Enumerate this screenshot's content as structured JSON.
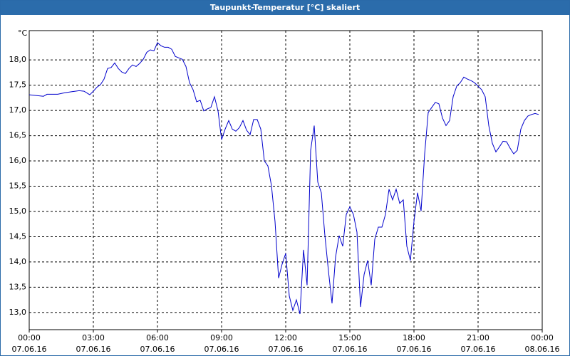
{
  "chart_data": {
    "type": "line",
    "title": "Taupunkt-Temperatur [°C] skaliert",
    "y_unit": "°C",
    "x": [
      0,
      40,
      50,
      80,
      100,
      120,
      140,
      154,
      170,
      180,
      190,
      200,
      210,
      220,
      230,
      240,
      250,
      260,
      270,
      280,
      290,
      300,
      310,
      320,
      330,
      340,
      350,
      360,
      370,
      380,
      390,
      400,
      410,
      420,
      430,
      440,
      450,
      460,
      470,
      480,
      490,
      500,
      510,
      520,
      530,
      540,
      550,
      560,
      570,
      580,
      590,
      600,
      610,
      620,
      630,
      640,
      650,
      660,
      670,
      680,
      690,
      700,
      710,
      720,
      730,
      740,
      750,
      760,
      770,
      780,
      790,
      800,
      810,
      820,
      830,
      840,
      850,
      860,
      870,
      880,
      890,
      900,
      910,
      920,
      930,
      940,
      950,
      960,
      970,
      980,
      990,
      1000,
      1010,
      1020,
      1030,
      1040,
      1050,
      1060,
      1070,
      1080,
      1090,
      1100,
      1110,
      1120,
      1130,
      1140,
      1150,
      1160,
      1170,
      1180,
      1190,
      1200,
      1210,
      1220,
      1230,
      1240,
      1250,
      1260,
      1270,
      1280,
      1290,
      1300,
      1310,
      1320,
      1330,
      1340,
      1350,
      1360,
      1370,
      1380,
      1390,
      1400,
      1410,
      1420,
      1430
    ],
    "series": [
      {
        "name": "Taupunkt",
        "color": "#0000cc",
        "values": [
          17.31,
          17.28,
          17.32,
          17.32,
          17.35,
          17.37,
          17.39,
          17.38,
          17.31,
          17.38,
          17.46,
          17.51,
          17.62,
          17.83,
          17.85,
          17.94,
          17.83,
          17.76,
          17.73,
          17.83,
          17.9,
          17.87,
          17.93,
          18.01,
          18.15,
          18.2,
          18.18,
          18.34,
          18.28,
          18.25,
          18.25,
          18.21,
          18.07,
          18.04,
          18.01,
          17.87,
          17.55,
          17.41,
          17.17,
          17.2,
          16.99,
          17.03,
          17.06,
          17.27,
          16.99,
          16.42,
          16.63,
          16.8,
          16.63,
          16.59,
          16.66,
          16.8,
          16.61,
          16.52,
          16.82,
          16.82,
          16.63,
          16.0,
          15.9,
          15.51,
          14.8,
          13.68,
          13.96,
          14.17,
          13.33,
          13.04,
          13.25,
          12.97,
          14.24,
          13.54,
          16.21,
          16.7,
          15.58,
          15.37,
          14.52,
          13.82,
          13.18,
          14.1,
          14.52,
          14.31,
          14.94,
          15.09,
          14.94,
          14.59,
          13.11,
          13.75,
          14.03,
          13.54,
          14.45,
          14.69,
          14.69,
          14.94,
          15.44,
          15.23,
          15.44,
          15.16,
          15.23,
          14.31,
          14.03,
          14.8,
          15.37,
          15.01,
          16.14,
          16.96,
          17.06,
          17.16,
          17.13,
          16.85,
          16.7,
          16.8,
          17.27,
          17.48,
          17.55,
          17.66,
          17.62,
          17.59,
          17.55,
          17.48,
          17.41,
          17.27,
          16.7,
          16.35,
          16.18,
          16.28,
          16.39,
          16.38,
          16.25,
          16.14,
          16.21,
          16.63,
          16.8,
          16.89,
          16.92,
          16.94,
          16.92
        ]
      }
    ],
    "xlim": [
      0,
      1440
    ],
    "xticks": [
      {
        "value": 0,
        "label": "00:00"
      },
      {
        "value": 180,
        "label": "03:00"
      },
      {
        "value": 360,
        "label": "06:00"
      },
      {
        "value": 540,
        "label": "09:00"
      },
      {
        "value": 720,
        "label": "12:00"
      },
      {
        "value": 900,
        "label": "15:00"
      },
      {
        "value": 1080,
        "label": "18:00"
      },
      {
        "value": 1260,
        "label": "21:00"
      },
      {
        "value": 1440,
        "label": "00:00"
      }
    ],
    "xtick_dates": [
      "07.06.16",
      "07.06.16",
      "07.06.16",
      "07.06.16",
      "07.06.16",
      "07.06.16",
      "07.06.16",
      "07.06.16",
      "08.06.16"
    ],
    "ylim": [
      12.66,
      18.58
    ],
    "yticks": [
      {
        "value": 13,
        "label": "13,0"
      },
      {
        "value": 13.5,
        "label": "13,5"
      },
      {
        "value": 14,
        "label": "14,0"
      },
      {
        "value": 14.5,
        "label": "14,5"
      },
      {
        "value": 15,
        "label": "15,0"
      },
      {
        "value": 15.5,
        "label": "15,5"
      },
      {
        "value": 16,
        "label": "16,0"
      },
      {
        "value": 16.5,
        "label": "16,5"
      },
      {
        "value": 17,
        "label": "17,0"
      },
      {
        "value": 17.5,
        "label": "17,5"
      },
      {
        "value": 18,
        "label": "18,0"
      }
    ],
    "grid": true
  }
}
